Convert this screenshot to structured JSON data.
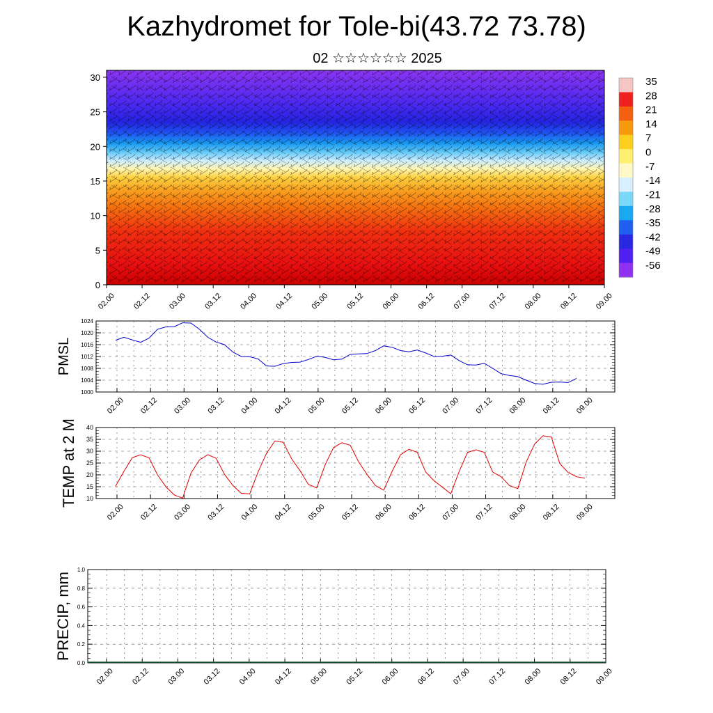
{
  "title": "Kazhydromet for Tole-bi(43.72 73.78)",
  "subtitle": "02 ☆☆☆☆☆☆ 2025",
  "chart_data": [
    {
      "type": "heatmap",
      "description_key": "vertical_section",
      "y_ticks": [
        "0",
        "5",
        "10",
        "15",
        "20",
        "25",
        "30"
      ],
      "ylim": [
        0,
        31
      ],
      "x_ticks": [
        "02.00",
        "02.12",
        "03.00",
        "03.12",
        "04.00",
        "04.12",
        "05.00",
        "05.12",
        "06.00",
        "06.12",
        "07.00",
        "07.12",
        "08.00",
        "08.12",
        "09.00"
      ],
      "colorbar_labels": [
        "35",
        "28",
        "21",
        "14",
        "7",
        "0",
        "-7",
        "-14",
        "-21",
        "-28",
        "-35",
        "-42",
        "-49",
        "-56"
      ],
      "colorbar_colors": [
        "#f4c6c6",
        "#ee2020",
        "#f26010",
        "#f89a10",
        "#fdd020",
        "#fff070",
        "#fff9c8",
        "#d8f0ff",
        "#7ad8f8",
        "#1aa8f0",
        "#2060f0",
        "#2828e0",
        "#5020f0",
        "#9030f0"
      ]
    },
    {
      "type": "line",
      "ylabel": "PMSL",
      "ylim": [
        1000,
        1024
      ],
      "y_ticks": [
        "1000",
        "1004",
        "1008",
        "1012",
        "1016",
        "1020",
        "1024"
      ],
      "x_ticks": [
        "02.00",
        "02.12",
        "03.00",
        "03.12",
        "04.00",
        "04.12",
        "05.00",
        "05.12",
        "06.00",
        "06.12",
        "07.00",
        "07.12",
        "08.00",
        "08.12",
        "09.00"
      ],
      "color": "#0000cc",
      "values": [
        1017.5,
        1018.5,
        1017.6,
        1016.8,
        1018.2,
        1021.2,
        1022.0,
        1022.1,
        1023.4,
        1023.3,
        1021.2,
        1018.5,
        1016.9,
        1016.0,
        1013.5,
        1012.0,
        1011.9,
        1011.2,
        1008.8,
        1008.7,
        1009.6,
        1010.0,
        1010.1,
        1011.0,
        1012.1,
        1011.7,
        1010.9,
        1011.1,
        1012.7,
        1012.9,
        1013.0,
        1014.0,
        1015.6,
        1015.1,
        1014.0,
        1013.6,
        1014.2,
        1013.2,
        1012.0,
        1012.1,
        1012.5,
        1010.6,
        1009.2,
        1009.1,
        1009.7,
        1008.0,
        1006.2,
        1005.6,
        1005.2,
        1004.0,
        1002.9,
        1002.6,
        1003.3,
        1003.4,
        1003.2,
        1004.6
      ]
    },
    {
      "type": "line",
      "ylabel": "TEMP at 2 M",
      "ylim": [
        10,
        40
      ],
      "y_ticks": [
        "10",
        "15",
        "20",
        "25",
        "30",
        "35",
        "40"
      ],
      "x_ticks": [
        "02.00",
        "02.12",
        "03.00",
        "03.12",
        "04.00",
        "04.12",
        "05.00",
        "05.12",
        "06.00",
        "06.12",
        "07.00",
        "07.12",
        "08.00",
        "08.12",
        "09.00"
      ],
      "color": "#e00000",
      "values": [
        15.2,
        21.5,
        27.3,
        28.5,
        27.2,
        20.0,
        15.0,
        11.5,
        10.2,
        20.8,
        26.3,
        28.5,
        27.0,
        20.2,
        15.5,
        12.2,
        12.0,
        21.2,
        29.0,
        34.3,
        33.8,
        26.8,
        21.8,
        16.0,
        14.5,
        24.2,
        31.5,
        33.6,
        32.5,
        25.5,
        20.2,
        15.5,
        13.5,
        21.5,
        28.5,
        30.8,
        29.5,
        21.2,
        17.5,
        14.8,
        12.0,
        21.5,
        29.5,
        30.6,
        29.5,
        21.2,
        19.2,
        15.5,
        14.2,
        25.5,
        33.0,
        36.5,
        36.0,
        24.8,
        21.0,
        19.2,
        18.6
      ]
    },
    {
      "type": "bar",
      "ylabel": "PRECIP, mm",
      "ylim": [
        0.0,
        1.0
      ],
      "y_ticks": [
        "0.0",
        "0.2",
        "0.4",
        "0.6",
        "0.8",
        "1.0"
      ],
      "x_ticks": [
        "02.00",
        "02.12",
        "03.00",
        "03.12",
        "04.00",
        "04.12",
        "05.00",
        "05.12",
        "06.00",
        "06.12",
        "07.00",
        "07.12",
        "08.00",
        "08.12",
        "09.00"
      ],
      "values": [
        0,
        0,
        0,
        0,
        0,
        0,
        0,
        0,
        0,
        0,
        0,
        0,
        0,
        0,
        0,
        0,
        0,
        0,
        0,
        0,
        0,
        0,
        0,
        0,
        0,
        0,
        0,
        0,
        0,
        0,
        0,
        0,
        0,
        0,
        0,
        0,
        0,
        0,
        0,
        0,
        0,
        0,
        0,
        0,
        0,
        0,
        0,
        0,
        0,
        0,
        0,
        0,
        0,
        0,
        0,
        0,
        0
      ]
    }
  ]
}
